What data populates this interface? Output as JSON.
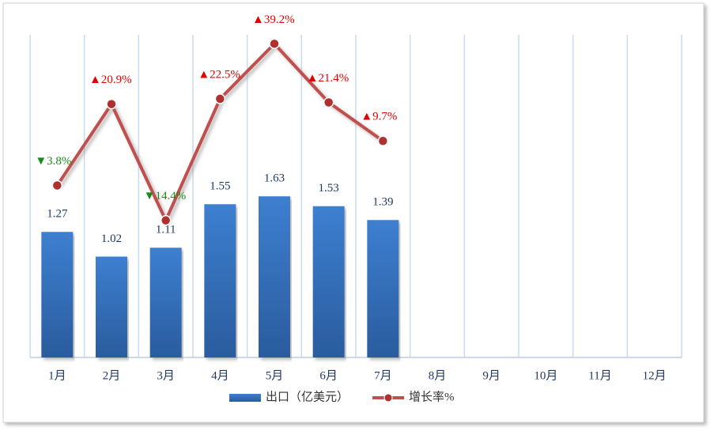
{
  "chart_data": {
    "type": "bar",
    "categories": [
      "1月",
      "2月",
      "3月",
      "4月",
      "5月",
      "6月",
      "7月",
      "8月",
      "9月",
      "10月",
      "11月",
      "12月"
    ],
    "series": [
      {
        "name": "出口（亿美元）",
        "type": "bar",
        "color": "#3572c0",
        "values": [
          1.27,
          1.02,
          1.11,
          1.55,
          1.63,
          1.53,
          1.39,
          null,
          null,
          null,
          null,
          null
        ]
      },
      {
        "name": "增长率%",
        "type": "line",
        "axis": "y2",
        "color": "#c0504d",
        "values": [
          -3.8,
          20.9,
          -14.4,
          22.5,
          39.2,
          21.4,
          9.7,
          null,
          null,
          null,
          null,
          null
        ],
        "value_labels": [
          "▼3.8%",
          "▲20.9%",
          "▼14.4%",
          "▲22.5%",
          "▲39.2%",
          "▲21.4%",
          "▲9.7%",
          null,
          null,
          null,
          null,
          null
        ]
      }
    ],
    "ylim": [
      0,
      3.2
    ],
    "y2lim": [
      -56,
      40
    ],
    "grid": true,
    "legend": "bottom"
  }
}
